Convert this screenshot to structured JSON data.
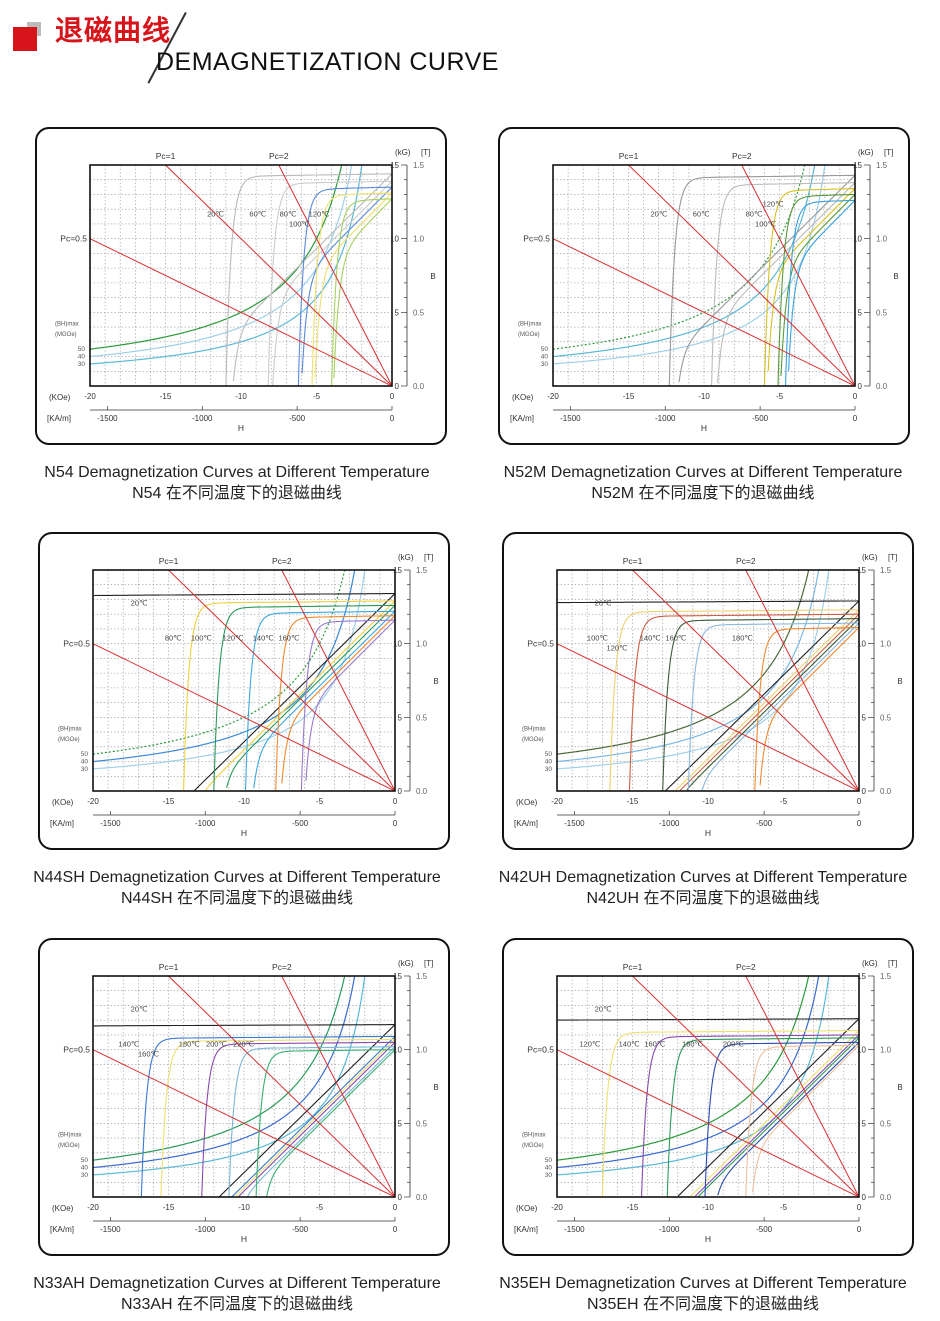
{
  "header": {
    "title_cn": "退磁曲线",
    "title_en": "DEMAGNETIZATION CURVE",
    "accent": "#d7141a"
  },
  "chart_data": [
    {
      "type": "line",
      "grade": "N54",
      "caption_en": "N54 Demagnetization Curves at Different Temperature",
      "caption_cn": "N54 在不同温度下的退磁曲线",
      "xlabel": "H",
      "xunit": "(KOe)",
      "xunit2": "[KA/m]",
      "ylabel": "B",
      "yunit": "(kG)",
      "yunit2": "[T]",
      "xlim": [
        -20,
        0
      ],
      "ylim": [
        0,
        15
      ],
      "grid": true,
      "xticks": [
        "-20",
        "-15",
        "-10",
        "-5",
        "0"
      ],
      "xticks2": [
        "-1500",
        "-1000",
        "-500",
        "0"
      ],
      "yticks": [
        "0",
        "5",
        "10",
        "15"
      ],
      "yticks2": [
        "0.0",
        "0.5",
        "1.0",
        "1.5"
      ],
      "load_lines": [
        {
          "label": "Pc=0.5",
          "pc": 0.5
        },
        {
          "label": "Pc=1",
          "pc": 1
        },
        {
          "label": "Pc=2",
          "pc": 2
        }
      ],
      "bhmax_title": "(BH)max",
      "bhmax_unit": "(MGOe)",
      "bhmax": [
        {
          "label": "50",
          "value": 50,
          "color": "#2a9a3a"
        },
        {
          "label": "40",
          "value": 40,
          "color": "#9fd0ea"
        },
        {
          "label": "30",
          "value": 30,
          "color": "#5ab8d8"
        }
      ],
      "series": [
        {
          "name": "20℃",
          "br": 14.4,
          "hcj": 11,
          "color": "#bbbbbb"
        },
        {
          "name": "60℃",
          "br": 13.9,
          "hcj": 8.2,
          "color": "#cccccc"
        },
        {
          "name": "80℃",
          "br": 13.5,
          "hcj": 6.2,
          "color": "#5a8ad8"
        },
        {
          "name": "100℃",
          "br": 13.1,
          "hcj": 5.3,
          "color": "#f0e070"
        },
        {
          "name": "120℃",
          "br": 12.7,
          "hcj": 4.0,
          "color": "#a8d060"
        }
      ]
    },
    {
      "type": "line",
      "grade": "N52M",
      "caption_en": "N52M Demagnetization Curves at Different Temperature",
      "caption_cn": "N52M 在不同温度下的退磁曲线",
      "xlabel": "H",
      "xunit": "(KOe)",
      "xunit2": "[KA/m]",
      "ylabel": "B",
      "yunit": "(kG)",
      "yunit2": "[T]",
      "xlim": [
        -20,
        0
      ],
      "ylim": [
        0,
        15
      ],
      "grid": true,
      "xticks": [
        "-20",
        "-15",
        "-10",
        "-5",
        "0"
      ],
      "xticks2": [
        "-1500",
        "-1000",
        "-500",
        "0"
      ],
      "yticks": [
        "0",
        "5",
        "10",
        "15"
      ],
      "yticks2": [
        "0.0",
        "0.5",
        "1.0",
        "1.5"
      ],
      "load_lines": [
        {
          "label": "Pc=0.5",
          "pc": 0.5
        },
        {
          "label": "Pc=1",
          "pc": 1
        },
        {
          "label": "Pc=2",
          "pc": 2
        }
      ],
      "bhmax_title": "(BH)max",
      "bhmax_unit": "(MGOe)",
      "bhmax": [
        {
          "label": "50",
          "value": 50,
          "color": "#2a9a3a"
        },
        {
          "label": "40",
          "value": 40,
          "color": "#5ab8d8"
        },
        {
          "label": "30",
          "value": 30,
          "color": "#9fd0ea"
        }
      ],
      "series": [
        {
          "name": "20℃",
          "br": 14.3,
          "hcj": 12.3,
          "color": "#999999"
        },
        {
          "name": "60℃",
          "br": 13.8,
          "hcj": 9.5,
          "color": "#bbbbbb"
        },
        {
          "name": "80℃",
          "br": 13.4,
          "hcj": 6.0,
          "color": "#d8c020"
        },
        {
          "name": "100℃",
          "br": 13.0,
          "hcj": 5.1,
          "color": "#5a9a3a"
        },
        {
          "name": "120℃",
          "br": 12.6,
          "hcj": 4.6,
          "color": "#3aa0e0"
        }
      ]
    },
    {
      "type": "line",
      "grade": "N44SH",
      "caption_en": "N44SH Demagnetization Curves at Different Temperature",
      "caption_cn": "N44SH 在不同温度下的退磁曲线",
      "xlabel": "H",
      "xunit": "(KOe)",
      "xunit2": "[KA/m]",
      "ylabel": "B",
      "yunit": "(kG)",
      "yunit2": "[T]",
      "xlim": [
        -20,
        0
      ],
      "ylim": [
        0,
        15
      ],
      "grid": true,
      "xticks": [
        "-20",
        "-15",
        "-10",
        "-5",
        "0"
      ],
      "xticks2": [
        "-1500",
        "-1000",
        "-500",
        "0"
      ],
      "yticks": [
        "0",
        "5",
        "10",
        "15"
      ],
      "yticks2": [
        "0.0",
        "0.5",
        "1.0",
        "1.5"
      ],
      "load_lines": [
        {
          "label": "Pc=0.5",
          "pc": 0.5
        },
        {
          "label": "Pc=1",
          "pc": 1
        },
        {
          "label": "Pc=2",
          "pc": 2
        }
      ],
      "bhmax_title": "(BH)max",
      "bhmax_unit": "(MGOe)",
      "bhmax": [
        {
          "label": "50",
          "value": 50,
          "color": "#2a9a3a"
        },
        {
          "label": "40",
          "value": 40,
          "color": "#3a8ad8"
        },
        {
          "label": "30",
          "value": 30,
          "color": "#9fd0ea"
        }
      ],
      "series": [
        {
          "name": "20℃",
          "br": 13.4,
          "hcj": 25,
          "color": "#222222"
        },
        {
          "name": "80℃",
          "br": 12.9,
          "hcj": 14,
          "color": "#f0d040"
        },
        {
          "name": "100℃",
          "br": 12.6,
          "hcj": 12,
          "color": "#2a9a5a"
        },
        {
          "name": "120℃",
          "br": 12.2,
          "hcj": 9.9,
          "color": "#3aa8e0"
        },
        {
          "name": "140℃",
          "br": 11.9,
          "hcj": 7.9,
          "color": "#f08a30"
        },
        {
          "name": "160℃",
          "br": 11.6,
          "hcj": 6.2,
          "color": "#9a7ad0"
        }
      ]
    },
    {
      "type": "line",
      "grade": "N42UH",
      "caption_en": "N42UH Demagnetization Curves at Different Temperature",
      "caption_cn": "N42UH 在不同温度下的退磁曲线",
      "xlabel": "H",
      "xunit": "(KOe)",
      "xunit2": "[KA/m]",
      "ylabel": "B",
      "yunit": "(kG)",
      "yunit2": "[T]",
      "xlim": [
        -20,
        0
      ],
      "ylim": [
        0,
        15
      ],
      "grid": true,
      "xticks": [
        "-20",
        "-15",
        "-10",
        "-5",
        "0"
      ],
      "xticks2": [
        "-1500",
        "-1000",
        "-500",
        "0"
      ],
      "yticks": [
        "0",
        "5",
        "10",
        "15"
      ],
      "yticks2": [
        "0.0",
        "0.5",
        "1.0",
        "1.5"
      ],
      "load_lines": [
        {
          "label": "Pc=0.5",
          "pc": 0.5
        },
        {
          "label": "Pc=1",
          "pc": 1
        },
        {
          "label": "Pc=2",
          "pc": 2
        }
      ],
      "bhmax_title": "(BH)max",
      "bhmax_unit": "(MGOe)",
      "bhmax": [
        {
          "label": "50",
          "value": 50,
          "color": "#4a6a3a"
        },
        {
          "label": "40",
          "value": 40,
          "color": "#7ab8e8"
        },
        {
          "label": "30",
          "value": 30,
          "color": "#9fd0ea"
        }
      ],
      "series": [
        {
          "name": "20℃",
          "br": 12.9,
          "hcj": 27,
          "color": "#222222"
        },
        {
          "name": "100℃",
          "br": 12.3,
          "hcj": 16.5,
          "color": "#f0d070"
        },
        {
          "name": "120℃",
          "br": 12.0,
          "hcj": 15.2,
          "color": "#d06040"
        },
        {
          "name": "140℃",
          "br": 11.7,
          "hcj": 13,
          "color": "#3a5a3a"
        },
        {
          "name": "160℃",
          "br": 11.4,
          "hcj": 11.3,
          "color": "#8ab8e0"
        },
        {
          "name": "180℃",
          "br": 11.1,
          "hcj": 6.9,
          "color": "#f08a30"
        }
      ]
    },
    {
      "type": "line",
      "grade": "N33AH",
      "caption_en": "N33AH Demagnetization Curves at Different Temperature",
      "caption_cn": "N33AH 在不同温度下的退磁曲线",
      "xlabel": "H",
      "xunit": "(KOe)",
      "xunit2": "[KA/m]",
      "ylabel": "B",
      "yunit": "(kG)",
      "yunit2": "[T]",
      "xlim": [
        -20,
        0
      ],
      "ylim": [
        0,
        15
      ],
      "grid": true,
      "xticks": [
        "-20",
        "-15",
        "-10",
        "-5",
        "0"
      ],
      "xticks2": [
        "-1500",
        "-1000",
        "-500",
        "0"
      ],
      "yticks": [
        "0",
        "5",
        "10",
        "15"
      ],
      "yticks2": [
        "0.0",
        "0.5",
        "1.0",
        "1.5"
      ],
      "load_lines": [
        {
          "label": "Pc=0.5",
          "pc": 0.5
        },
        {
          "label": "Pc=1",
          "pc": 1
        },
        {
          "label": "Pc=2",
          "pc": 2
        }
      ],
      "bhmax_title": "(BH)max",
      "bhmax_unit": "(MGOe)",
      "bhmax": [
        {
          "label": "50",
          "value": 50,
          "color": "#2a9a5a"
        },
        {
          "label": "40",
          "value": 40,
          "color": "#3a6ad0"
        },
        {
          "label": "30",
          "value": 30,
          "color": "#5ab8d8"
        }
      ],
      "series": [
        {
          "name": "20℃",
          "br": 11.7,
          "hcj": 33,
          "color": "#222222"
        },
        {
          "name": "140℃",
          "br": 10.9,
          "hcj": 16.8,
          "color": "#3a7ad0"
        },
        {
          "name": "160℃",
          "br": 10.7,
          "hcj": 15.5,
          "color": "#f0e070"
        },
        {
          "name": "180℃",
          "br": 10.5,
          "hcj": 12.8,
          "color": "#8a4ab0"
        },
        {
          "name": "200℃",
          "br": 10.2,
          "hcj": 11,
          "color": "#7ab8d8"
        },
        {
          "name": "220℃",
          "br": 10.0,
          "hcj": 9.2,
          "color": "#3ab070"
        }
      ]
    },
    {
      "type": "line",
      "grade": "N35EH",
      "caption_en": "N35EH Demagnetization Curves at Different Temperature",
      "caption_cn": "N35EH 在不同温度下的退磁曲线",
      "xlabel": "H",
      "xunit": "(KOe)",
      "xunit2": "[KA/m]",
      "ylabel": "B",
      "yunit": "(kG)",
      "yunit2": "[T]",
      "xlim": [
        -20,
        0
      ],
      "ylim": [
        0,
        15
      ],
      "grid": true,
      "xticks": [
        "-20",
        "-15",
        "-10",
        "-5",
        "0"
      ],
      "xticks2": [
        "-1500",
        "-1000",
        "-500",
        "0"
      ],
      "yticks": [
        "0",
        "5",
        "10",
        "15"
      ],
      "yticks2": [
        "0.0",
        "0.5",
        "1.0",
        "1.5"
      ],
      "load_lines": [
        {
          "label": "Pc=0.5",
          "pc": 0.5
        },
        {
          "label": "Pc=1",
          "pc": 1
        },
        {
          "label": "Pc=2",
          "pc": 2
        }
      ],
      "bhmax_title": "(BH)max",
      "bhmax_unit": "(MGOe)",
      "bhmax": [
        {
          "label": "50",
          "value": 50,
          "color": "#2a9a3a"
        },
        {
          "label": "40",
          "value": 40,
          "color": "#3a6ad0"
        },
        {
          "label": "30",
          "value": 30,
          "color": "#5ab8d8"
        }
      ],
      "series": [
        {
          "name": "20℃",
          "br": 12.1,
          "hcj": 30,
          "color": "#222222"
        },
        {
          "name": "120℃",
          "br": 11.3,
          "hcj": 17,
          "color": "#f0e070"
        },
        {
          "name": "140℃",
          "br": 11.0,
          "hcj": 14.4,
          "color": "#8a4ab0"
        },
        {
          "name": "160℃",
          "br": 10.8,
          "hcj": 12.7,
          "color": "#2a9a5a"
        },
        {
          "name": "180℃",
          "br": 10.5,
          "hcj": 10.2,
          "color": "#2a4ab0"
        },
        {
          "name": "200℃",
          "br": 10.3,
          "hcj": 7.5,
          "color": "#f0c0a0"
        }
      ]
    }
  ]
}
